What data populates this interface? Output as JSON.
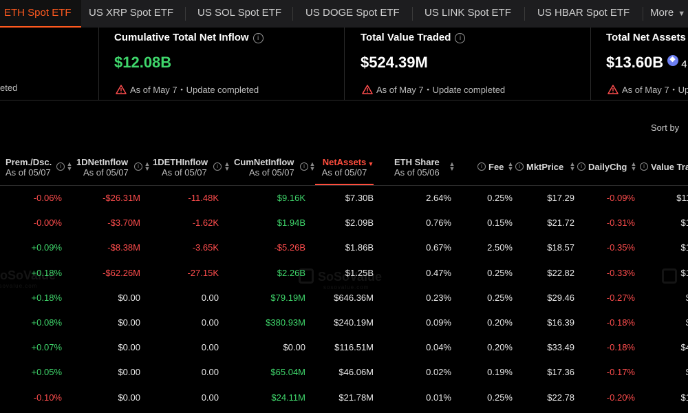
{
  "tabs": [
    {
      "label": "ETH Spot ETF",
      "active": true
    },
    {
      "label": "US XRP Spot ETF"
    },
    {
      "label": "US SOL Spot ETF"
    },
    {
      "label": "US DOGE Spot ETF"
    },
    {
      "label": "US LINK Spot ETF"
    },
    {
      "label": "US HBAR Spot ETF"
    }
  ],
  "more_label": "More",
  "cards": [
    {
      "note": "eted"
    },
    {
      "title": "Cumulative Total Net Inflow",
      "value": "$12.08B",
      "value_color": "#3fd66b",
      "note": "As of May 7・Update completed"
    },
    {
      "title": "Total Value Traded",
      "value": "$524.39M",
      "value_color": "#ffffff",
      "note": "As of May 7・Update completed"
    },
    {
      "title": "Total Net Assets",
      "value": "$13.60B",
      "extra": "4",
      "value_color": "#ffffff",
      "note": "As of May 7・Up"
    }
  ],
  "sort_label": "Sort by",
  "columns": [
    {
      "label": "Prem./Dsc.",
      "sub": "As of 05/07"
    },
    {
      "label": "1DNetInflow",
      "sub": "As of 05/07"
    },
    {
      "label": "1DETHInflow",
      "sub": "As of 05/07"
    },
    {
      "label": "CumNetInflow",
      "sub": "As of 05/07"
    },
    {
      "label": "NetAssets",
      "sub": "As of 05/07",
      "active": true
    },
    {
      "label": "ETH Share",
      "sub": "As of 05/06"
    },
    {
      "label": "Fee"
    },
    {
      "label": "MktPrice"
    },
    {
      "label": "DailyChg"
    },
    {
      "label": "Value Tra"
    }
  ],
  "rows": [
    {
      "prem": "-0.06%",
      "inflow": "-$26.31M",
      "eth_inflow": "-11.48K",
      "cum": "$9.16K",
      "net_assets": "$7.30B",
      "share": "2.64%",
      "fee": "0.25%",
      "price": "$17.29",
      "chg": "-0.09%",
      "vt": "$11"
    },
    {
      "prem": "-0.00%",
      "inflow": "-$3.70M",
      "eth_inflow": "-1.62K",
      "cum": "$1.94B",
      "net_assets": "$2.09B",
      "share": "0.76%",
      "fee": "0.15%",
      "price": "$21.72",
      "chg": "-0.31%",
      "vt": "$1"
    },
    {
      "prem": "+0.09%",
      "inflow": "-$8.38M",
      "eth_inflow": "-3.65K",
      "cum": "-$5.26B",
      "net_assets": "$1.86B",
      "share": "0.67%",
      "fee": "2.50%",
      "price": "$18.57",
      "chg": "-0.35%",
      "vt": "$1"
    },
    {
      "prem": "+0.18%",
      "inflow": "-$62.26M",
      "eth_inflow": "-27.15K",
      "cum": "$2.26B",
      "net_assets": "$1.25B",
      "share": "0.47%",
      "fee": "0.25%",
      "price": "$22.82",
      "chg": "-0.33%",
      "vt": "$1"
    },
    {
      "prem": "+0.18%",
      "inflow": "$0.00",
      "eth_inflow": "0.00",
      "cum": "$79.19M",
      "net_assets": "$646.36M",
      "share": "0.23%",
      "fee": "0.25%",
      "price": "$29.46",
      "chg": "-0.27%",
      "vt": "$"
    },
    {
      "prem": "+0.08%",
      "inflow": "$0.00",
      "eth_inflow": "0.00",
      "cum": "$380.93M",
      "net_assets": "$240.19M",
      "share": "0.09%",
      "fee": "0.20%",
      "price": "$16.39",
      "chg": "-0.18%",
      "vt": "$"
    },
    {
      "prem": "+0.07%",
      "inflow": "$0.00",
      "eth_inflow": "0.00",
      "cum": "$0.00",
      "net_assets": "$116.51M",
      "share": "0.04%",
      "fee": "0.20%",
      "price": "$33.49",
      "chg": "-0.18%",
      "vt": "$4"
    },
    {
      "prem": "+0.05%",
      "inflow": "$0.00",
      "eth_inflow": "0.00",
      "cum": "$65.04M",
      "net_assets": "$46.06M",
      "share": "0.02%",
      "fee": "0.19%",
      "price": "$17.36",
      "chg": "-0.17%",
      "vt": "$"
    },
    {
      "prem": "-0.10%",
      "inflow": "$0.00",
      "eth_inflow": "0.00",
      "cum": "$24.11M",
      "net_assets": "$21.78M",
      "share": "0.01%",
      "fee": "0.25%",
      "price": "$22.78",
      "chg": "-0.20%",
      "vt": "$1"
    }
  ],
  "watermark": {
    "text": "SoSoValue",
    "sub": "sosovalue.com"
  },
  "colors": {
    "accent": "#ff5a1f",
    "positive": "#3fd66b",
    "negative": "#ff4d4d",
    "background": "#000000"
  }
}
